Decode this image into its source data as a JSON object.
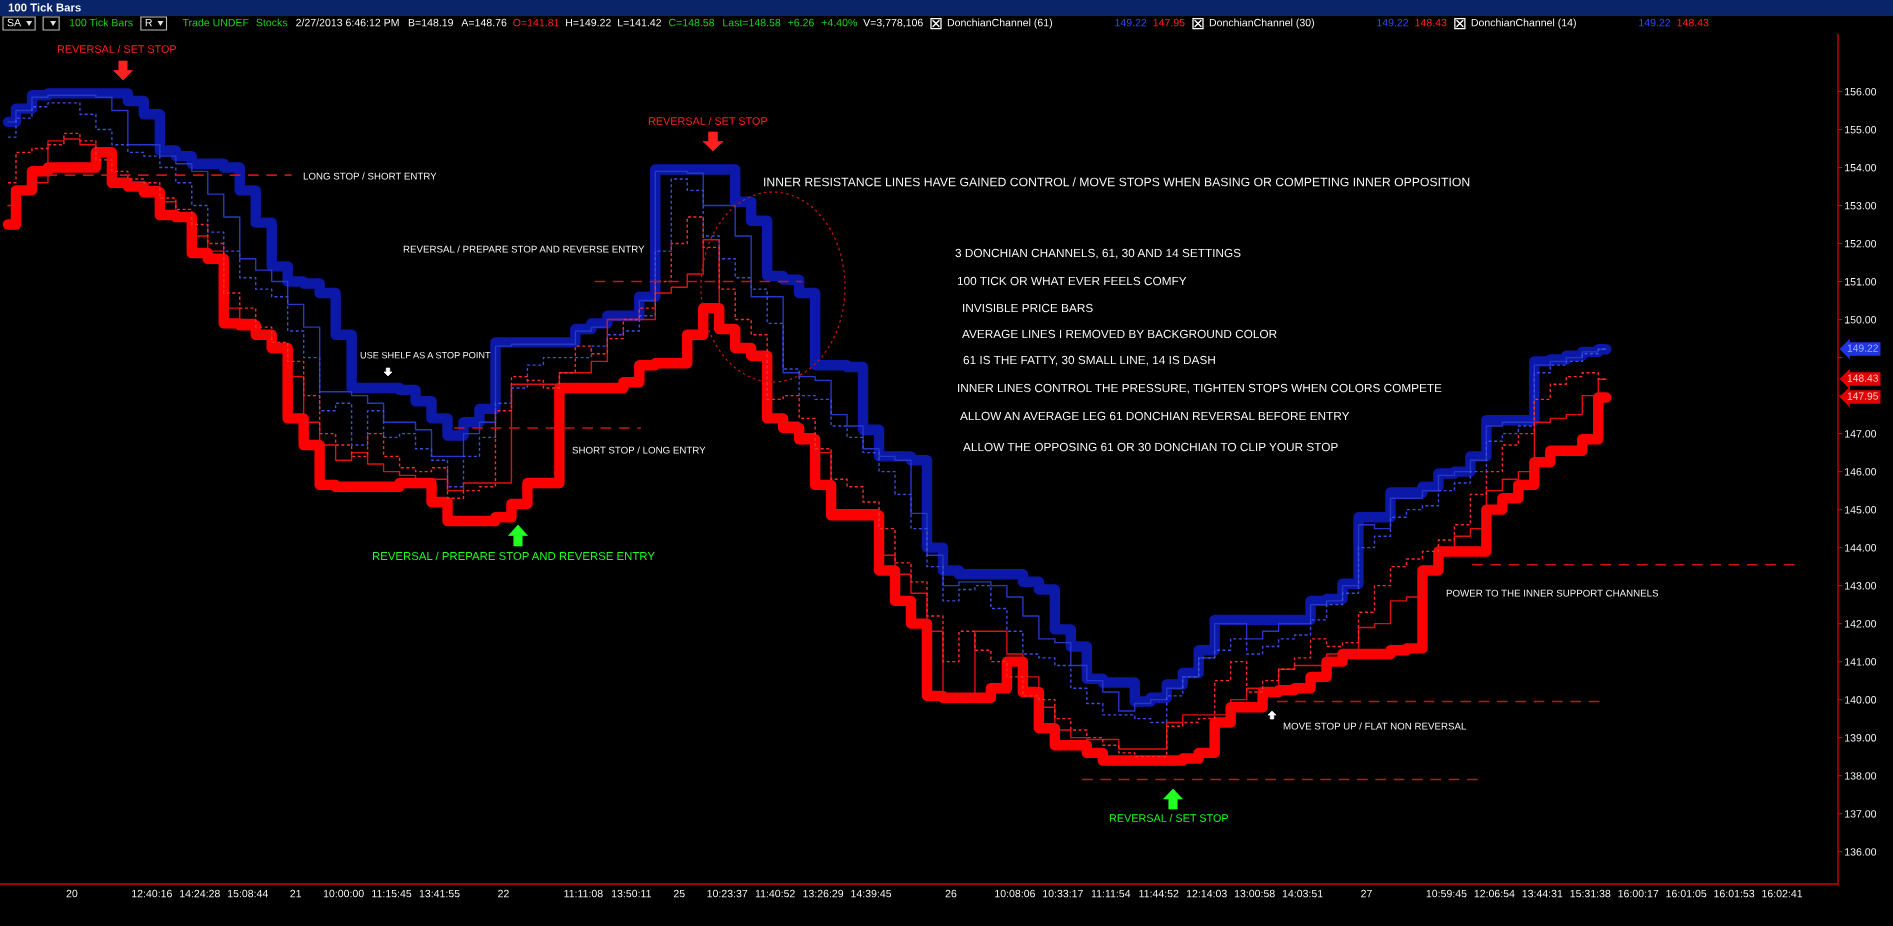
{
  "chart_data": {
    "type": "step",
    "title": "100 Tick Bars",
    "categories": [
      null,
      null,
      null,
      null,
      "20",
      null,
      null,
      null,
      null,
      "12:40:16",
      null,
      null,
      "14:24:28",
      null,
      null,
      "15:08:44",
      null,
      null,
      "21",
      null,
      null,
      "10:00:00",
      null,
      null,
      "11:15:45",
      null,
      null,
      "13:41:55",
      null,
      null,
      null,
      "22",
      null,
      null,
      null,
      null,
      "11:11:08",
      null,
      null,
      "13:50:11",
      null,
      null,
      "25",
      null,
      null,
      "10:23:37",
      null,
      null,
      "11:40:52",
      null,
      null,
      "13:26:29",
      null,
      null,
      "14:39:45",
      null,
      null,
      null,
      null,
      "26",
      null,
      null,
      null,
      "10:08:06",
      null,
      null,
      "10:33:17",
      null,
      null,
      "11:11:54",
      null,
      null,
      "11:44:52",
      null,
      null,
      "12:14:03",
      null,
      null,
      "13:00:58",
      null,
      null,
      "14:03:51",
      null,
      null,
      null,
      "27",
      null,
      null,
      null,
      null,
      "10:59:45",
      null,
      null,
      "12:06:54",
      null,
      null,
      "13:44:31",
      null,
      null,
      "15:31:38",
      null,
      null,
      "16:00:17",
      null,
      null,
      "16:01:05",
      null,
      null,
      "16:01:53",
      null,
      null,
      "16:02:41",
      null,
      null,
      null
    ],
    "series": [
      {
        "color": "#0c18a8",
        "line_style": "solid",
        "values": [
          155.2,
          155.55,
          155.9,
          155.95,
          155.95,
          155.95,
          155.95,
          155.95,
          155.75,
          155.4,
          154.45,
          154.3,
          154.1,
          154.1,
          154.0,
          153.4,
          152.55,
          151.4,
          151.0,
          150.95,
          150.7,
          149.6,
          148.2,
          148.2,
          148.2,
          148.15,
          147.85,
          147.4,
          146.95,
          147.3,
          147.65,
          149.4,
          149.4,
          149.4,
          149.4,
          149.4,
          149.75,
          149.9,
          150.1,
          150.1,
          150.6,
          153.95,
          153.95,
          153.95,
          153.95,
          153.95,
          153.1,
          152.6,
          151.15,
          151.05,
          150.7,
          148.8,
          148.8,
          148.75,
          147.1,
          146.4,
          146.4,
          146.3,
          144.0,
          143.4,
          143.3,
          143.3,
          143.3,
          143.3,
          143.1,
          142.9,
          141.85,
          141.4,
          140.55,
          140.45,
          140.45,
          139.95,
          140.05,
          140.4,
          140.7,
          141.3,
          142.1,
          142.1,
          142.1,
          142.1,
          142.1,
          142.1,
          142.6,
          142.65,
          143.05,
          144.8,
          144.8,
          145.45,
          145.45,
          145.6,
          145.95,
          146.0,
          146.4,
          147.35,
          147.35,
          147.35,
          148.9,
          148.95,
          149.05,
          149.15,
          149.22,
          null,
          null,
          null,
          null,
          null,
          null,
          null,
          null,
          null,
          null,
          null,
          null,
          null,
          null
        ]
      },
      {
        "color": "#ff0000",
        "line_style": "solid",
        "values": [
          152.5,
          153.4,
          153.9,
          154.0,
          154.0,
          154.0,
          154.4,
          153.6,
          153.5,
          153.35,
          152.75,
          152.7,
          151.75,
          151.6,
          149.9,
          149.85,
          149.6,
          149.25,
          147.4,
          146.7,
          145.65,
          145.6,
          145.6,
          145.6,
          145.6,
          145.7,
          145.7,
          145.2,
          144.7,
          144.7,
          144.7,
          144.8,
          145.15,
          145.7,
          145.7,
          148.2,
          148.2,
          148.2,
          148.2,
          148.35,
          148.8,
          148.85,
          148.85,
          149.6,
          150.3,
          149.75,
          149.25,
          149.05,
          147.4,
          147.15,
          146.85,
          145.65,
          144.85,
          144.85,
          144.85,
          143.4,
          142.6,
          142.0,
          140.1,
          140.05,
          140.05,
          140.05,
          140.3,
          141.0,
          140.2,
          139.25,
          138.8,
          138.8,
          138.6,
          138.4,
          138.4,
          138.4,
          138.4,
          138.4,
          138.45,
          138.6,
          139.4,
          139.8,
          139.8,
          140.2,
          140.25,
          140.3,
          140.6,
          141.0,
          141.2,
          141.2,
          141.2,
          141.3,
          141.35,
          143.4,
          143.9,
          143.9,
          143.9,
          145.0,
          145.3,
          145.65,
          146.25,
          146.55,
          146.55,
          146.85,
          147.95,
          null,
          null,
          null,
          null,
          null,
          null,
          null,
          null,
          null,
          null,
          null,
          null,
          null,
          null
        ]
      },
      {
        "color": "#2638c8",
        "line_style": "solid",
        "values": [
          155.2,
          155.5,
          155.85,
          155.9,
          155.9,
          155.9,
          155.85,
          155.5,
          154.6,
          154.6,
          154.3,
          154.1,
          153.9,
          153.3,
          152.7,
          151.6,
          151.3,
          151.0,
          150.4,
          149.8,
          148.1,
          148.1,
          148.0,
          147.8,
          147.3,
          147.3,
          147.1,
          146.4,
          146.4,
          147.0,
          147.3,
          149.3,
          149.35,
          149.35,
          149.35,
          149.35,
          149.7,
          149.8,
          150.0,
          150.0,
          150.5,
          153.9,
          153.9,
          153.85,
          153.0,
          153.0,
          152.2,
          150.6,
          150.6,
          148.6,
          148.5,
          148.4,
          147.5,
          147.2,
          146.6,
          146.4,
          146.3,
          144.9,
          143.8,
          143.0,
          143.1,
          143.1,
          143.0,
          142.7,
          142.2,
          141.6,
          141.5,
          140.9,
          140.5,
          140.2,
          139.7,
          139.9,
          140.0,
          140.3,
          140.6,
          141.1,
          142.0,
          142.0,
          141.6,
          141.8,
          142.0,
          142.0,
          142.5,
          142.6,
          143.0,
          144.6,
          144.5,
          145.3,
          145.3,
          145.5,
          145.9,
          146.0,
          146.3,
          147.2,
          147.3,
          147.3,
          148.8,
          148.9,
          149.0,
          149.15,
          149.22,
          null,
          null,
          null,
          null,
          null,
          null,
          null,
          null,
          null,
          null,
          null,
          null,
          null,
          null
        ]
      },
      {
        "color": "#e01010",
        "line_style": "solid",
        "values": [
          153.0,
          153.3,
          153.6,
          154.7,
          154.75,
          154.6,
          154.4,
          153.7,
          153.6,
          153.5,
          153.1,
          152.8,
          152.2,
          151.8,
          150.3,
          150.0,
          149.6,
          149.3,
          148.5,
          147.3,
          146.7,
          146.3,
          146.5,
          146.2,
          146.0,
          145.9,
          145.8,
          145.8,
          145.5,
          145.7,
          145.7,
          145.7,
          148.3,
          148.3,
          148.3,
          148.6,
          148.6,
          148.9,
          150.0,
          150.0,
          150.0,
          150.7,
          150.85,
          151.2,
          152.1,
          149.8,
          149.3,
          149.1,
          147.3,
          147.3,
          147.0,
          146.5,
          145.0,
          145.0,
          145.0,
          143.8,
          143.3,
          142.8,
          141.8,
          140.1,
          140.1,
          141.8,
          141.8,
          141.2,
          140.6,
          139.8,
          139.2,
          139.0,
          138.95,
          138.95,
          138.7,
          138.7,
          138.7,
          139.4,
          139.6,
          139.6,
          139.6,
          140.0,
          140.3,
          140.3,
          140.8,
          140.9,
          140.9,
          141.2,
          141.2,
          141.9,
          142.0,
          142.6,
          142.7,
          143.5,
          144.0,
          144.3,
          144.5,
          145.5,
          145.8,
          146.0,
          147.3,
          147.4,
          147.5,
          148.0,
          148.43,
          null,
          null,
          null,
          null,
          null,
          null,
          null,
          null,
          null,
          null,
          null,
          null,
          null,
          null
        ]
      },
      {
        "color": "#3a4ee0",
        "line_style": "dotted",
        "values": [
          154.8,
          155.3,
          155.6,
          155.7,
          155.7,
          155.4,
          155.0,
          154.6,
          154.4,
          154.3,
          154.0,
          153.6,
          153.0,
          152.3,
          151.8,
          151.1,
          150.8,
          150.6,
          149.7,
          149.0,
          147.6,
          147.8,
          146.7,
          147.6,
          146.9,
          147.0,
          146.6,
          146.3,
          145.6,
          146.4,
          146.9,
          147.8,
          148.2,
          148.8,
          149.0,
          149.0,
          149.0,
          149.3,
          149.6,
          149.7,
          150.1,
          151.8,
          153.7,
          153.4,
          152.2,
          151.6,
          151.1,
          150.8,
          149.9,
          148.7,
          148.0,
          147.9,
          147.2,
          146.9,
          146.5,
          146.0,
          145.4,
          144.5,
          143.5,
          142.6,
          142.9,
          143.0,
          142.4,
          141.8,
          141.2,
          141.1,
          140.9,
          140.3,
          139.9,
          139.6,
          139.6,
          139.5,
          139.4,
          140.1,
          140.6,
          141.1,
          141.3,
          141.6,
          141.2,
          141.4,
          141.6,
          141.7,
          142.1,
          142.5,
          142.8,
          144.0,
          144.3,
          144.8,
          145.0,
          145.1,
          145.5,
          145.7,
          146.0,
          146.8,
          147.0,
          147.2,
          148.6,
          148.8,
          148.9,
          149.1,
          149.22,
          null,
          null,
          null,
          null,
          null,
          null,
          null,
          null,
          null,
          null,
          null,
          null,
          null,
          null
        ]
      },
      {
        "color": "#ff2a2a",
        "line_style": "dotted",
        "values": [
          153.6,
          154.4,
          154.5,
          154.6,
          154.9,
          154.7,
          154.2,
          153.9,
          153.7,
          153.6,
          153.2,
          152.9,
          152.5,
          152.0,
          150.7,
          150.3,
          149.8,
          149.4,
          148.9,
          148.0,
          147.0,
          146.7,
          146.4,
          147.0,
          146.4,
          146.1,
          146.0,
          146.1,
          145.3,
          145.5,
          145.6,
          147.6,
          148.5,
          148.4,
          148.2,
          148.6,
          149.3,
          149.1,
          149.5,
          150.0,
          150.3,
          151.0,
          152.0,
          152.7,
          151.9,
          150.8,
          150.0,
          149.6,
          147.9,
          148.0,
          147.4,
          146.6,
          145.8,
          145.6,
          145.2,
          144.5,
          143.6,
          143.1,
          142.2,
          141.0,
          141.8,
          141.3,
          141.0,
          140.6,
          140.1,
          140.0,
          139.5,
          139.2,
          139.0,
          138.8,
          138.6,
          138.5,
          138.5,
          139.3,
          139.4,
          139.5,
          140.5,
          141.0,
          140.2,
          140.5,
          140.8,
          141.1,
          141.6,
          141.4,
          141.5,
          142.3,
          143.0,
          143.5,
          143.7,
          143.9,
          144.2,
          144.6,
          145.4,
          146.0,
          146.7,
          147.0,
          147.9,
          148.3,
          148.5,
          148.6,
          148.43,
          null,
          null,
          null,
          null,
          null,
          null,
          null,
          null,
          null,
          null,
          null,
          null,
          null,
          null
        ]
      }
    ],
    "ylim": [
      135.15,
      157.5
    ],
    "yticks": [
      {
        "value": 136,
        "label": "136.00"
      },
      {
        "value": 137,
        "label": "137.00"
      },
      {
        "value": 138,
        "label": "138.00"
      },
      {
        "value": 139,
        "label": "139.00"
      },
      {
        "value": 140,
        "label": "140.00"
      },
      {
        "value": 141,
        "label": "141.00"
      },
      {
        "value": 142,
        "label": "142.00"
      },
      {
        "value": 143,
        "label": "143.00"
      },
      {
        "value": 144,
        "label": "144.00"
      },
      {
        "value": 145,
        "label": "145.00"
      },
      {
        "value": 146,
        "label": "146.00"
      },
      {
        "value": 147,
        "label": "147.00"
      },
      {
        "value": 148,
        "label": null
      },
      {
        "value": 149,
        "label": null
      },
      {
        "value": 150,
        "label": "150.00"
      },
      {
        "value": 151,
        "label": "151.00"
      },
      {
        "value": 152,
        "label": "152.00"
      },
      {
        "value": 153,
        "label": "153.00"
      },
      {
        "value": 154,
        "label": "154.00"
      },
      {
        "value": 155,
        "label": "155.00"
      },
      {
        "value": 156,
        "label": "156.00"
      }
    ],
    "ref_lines": [
      {
        "axis": "y",
        "value": 153.8,
        "label": "LONG STOP / SHORT ENTRY",
        "color": "#c81414",
        "line_style": "dashed"
      },
      {
        "axis": "y",
        "value": 151.0,
        "color": "#c81414",
        "line_style": "dashed"
      },
      {
        "axis": "y",
        "value": 147.15,
        "label": "SHORT STOP / LONG ENTRY",
        "color": "#c81414",
        "line_style": "dashed"
      },
      {
        "axis": "y",
        "value": 143.55,
        "label": "POWER TO THE INNER SUPPORT CHANNELS",
        "color": "#c81414",
        "line_style": "dashed"
      },
      {
        "axis": "y",
        "value": 139.95,
        "label": "MOVE STOP UP / FLAT NON REVERSAL",
        "color": "#c81414",
        "line_style": "dashed"
      },
      {
        "axis": "y",
        "value": 137.9,
        "color": "#c81414",
        "line_style": "dashed"
      }
    ],
    "annotations": [
      "SA",
      "100 Tick Bars",
      "R",
      "Trade UNDEF",
      "Stocks",
      "2/27/2013 6:46:12 PM",
      "B=148.19",
      "A=148.76",
      "O=141.81",
      "H=149.22",
      "L=141.42",
      "C=148.58",
      "Last=148.58",
      "+6.26",
      "+4.40%",
      "V=3,778,106",
      "DonchianChannel (61)",
      "149.22",
      "147.95",
      "DonchianChannel (30)",
      "149.22",
      "148.43",
      "DonchianChannel (14)",
      "149.22",
      "148.43",
      "REVERSAL / SET STOP",
      "REVERSAL / SET STOP",
      "INNER RESISTANCE LINES HAVE GAINED CONTROL / MOVE STOPS WHEN BASING OR COMPETING INNER OPPOSITION",
      "REVERSAL / PREPARE STOP AND REVERSE ENTRY",
      "3 DONCHIAN CHANNELS, 61, 30 AND 14 SETTINGS",
      "100 TICK OR WHAT EVER FEELS COMFY",
      "INVISIBLE PRICE BARS",
      "AVERAGE LINES I REMOVED BY BACKGROUND COLOR",
      "61 IS THE FATTY, 30 SMALL LINE, 14 IS DASH",
      "INNER LINES CONTROL THE PRESSURE, TIGHTEN STOPS WHEN COLORS COMPETE",
      "ALLOW AN AVERAGE LEG 61 DONCHIAN REVERSAL BEFORE ENTRY",
      "ALLOW THE OPPOSING 61 OR 30 DONCHIAN TO CLIP YOUR STOP",
      "USE SHELF AS A STOP POINT",
      "REVERSAL / PREPARE STOP AND REVERSE ENTRY",
      "REVERSAL / SET STOP",
      "149.22",
      "148.43",
      "147.95"
    ]
  }
}
